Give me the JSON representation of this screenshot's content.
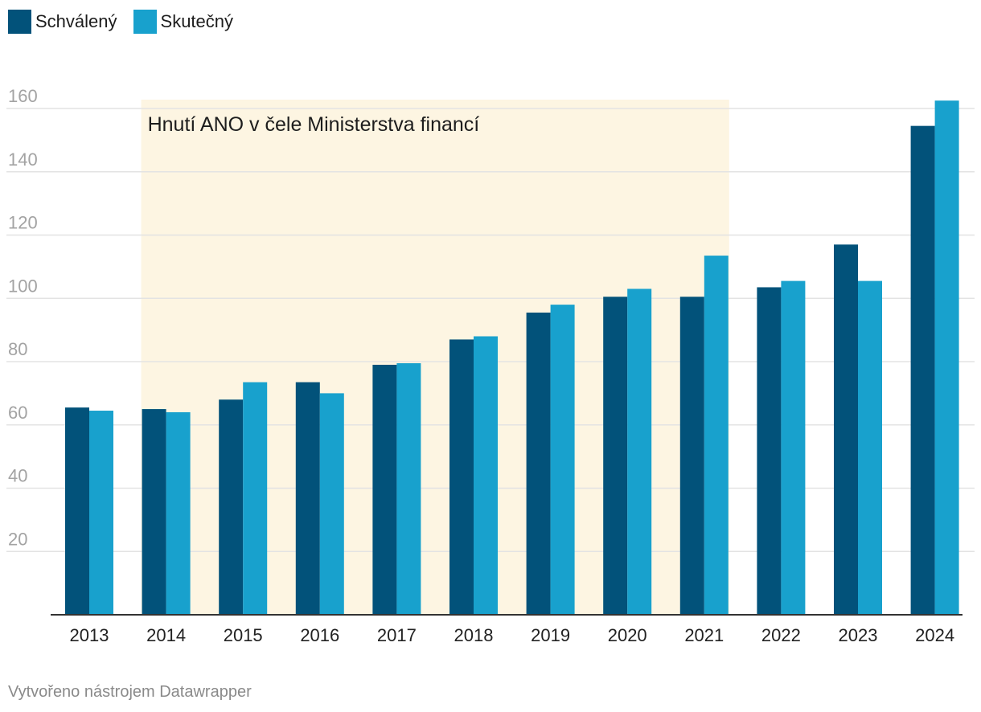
{
  "legend": [
    {
      "label": "Schválený",
      "color": "#02527a"
    },
    {
      "label": "Skutečný",
      "color": "#18a1cd"
    }
  ],
  "credit": "Vytvořeno nástrojem Datawrapper",
  "colors": {
    "grid": "#e3e3e3",
    "axis": "#333333",
    "highlight": "#fdf5e2",
    "tick_label": "#a3a3a3",
    "category_label": "#222222"
  },
  "chart_data": {
    "type": "bar",
    "title": "",
    "xlabel": "",
    "ylabel": "",
    "ylim": [
      0,
      160
    ],
    "yticks": [
      20,
      40,
      60,
      80,
      100,
      120,
      140,
      160
    ],
    "grid": true,
    "legend_position": "top-left",
    "categories": [
      "2013",
      "2014",
      "2015",
      "2016",
      "2017",
      "2018",
      "2019",
      "2020",
      "2021",
      "2022",
      "2023",
      "2024"
    ],
    "series": [
      {
        "name": "Schválený",
        "color": "#02527a",
        "values": [
          65.5,
          65.0,
          68.0,
          73.5,
          79.0,
          87.0,
          95.5,
          100.5,
          100.5,
          103.5,
          117.0,
          154.5
        ]
      },
      {
        "name": "Skutečný",
        "color": "#18a1cd",
        "values": [
          64.5,
          64.0,
          73.5,
          70.0,
          79.5,
          88.0,
          98.0,
          103.0,
          113.5,
          105.5,
          105.5,
          162.5
        ]
      }
    ],
    "annotation": {
      "text": "Hnutí ANO v čele Ministerstva financí",
      "from_category": "2014",
      "to_category": "2021"
    }
  }
}
